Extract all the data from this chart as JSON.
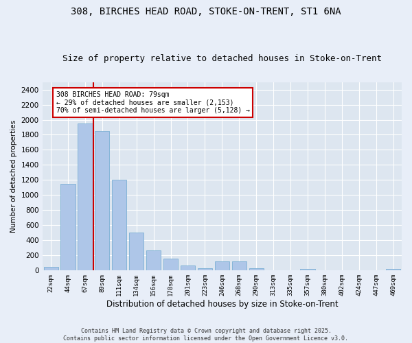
{
  "title1": "308, BIRCHES HEAD ROAD, STOKE-ON-TRENT, ST1 6NA",
  "title2": "Size of property relative to detached houses in Stoke-on-Trent",
  "xlabel": "Distribution of detached houses by size in Stoke-on-Trent",
  "ylabel": "Number of detached properties",
  "categories": [
    "22sqm",
    "44sqm",
    "67sqm",
    "89sqm",
    "111sqm",
    "134sqm",
    "156sqm",
    "178sqm",
    "201sqm",
    "223sqm",
    "246sqm",
    "268sqm",
    "290sqm",
    "313sqm",
    "335sqm",
    "357sqm",
    "380sqm",
    "402sqm",
    "424sqm",
    "447sqm",
    "469sqm"
  ],
  "values": [
    50,
    1150,
    1950,
    1850,
    1200,
    500,
    270,
    160,
    65,
    30,
    120,
    120,
    30,
    0,
    0,
    20,
    0,
    0,
    0,
    0,
    20
  ],
  "bar_color": "#aec6e8",
  "bar_edge_color": "#7aafd4",
  "vline_color": "#cc0000",
  "annotation_text": "308 BIRCHES HEAD ROAD: 79sqm\n← 29% of detached houses are smaller (2,153)\n70% of semi-detached houses are larger (5,128) →",
  "annotation_box_color": "#ffffff",
  "annotation_box_edge": "#cc0000",
  "ylim": [
    0,
    2500
  ],
  "yticks": [
    0,
    200,
    400,
    600,
    800,
    1000,
    1200,
    1400,
    1600,
    1800,
    2000,
    2200,
    2400
  ],
  "bg_color": "#dde6f0",
  "fig_bg_color": "#e8eef8",
  "footer": "Contains HM Land Registry data © Crown copyright and database right 2025.\nContains public sector information licensed under the Open Government Licence v3.0.",
  "title1_fontsize": 10,
  "title2_fontsize": 9,
  "vline_bin": 2
}
